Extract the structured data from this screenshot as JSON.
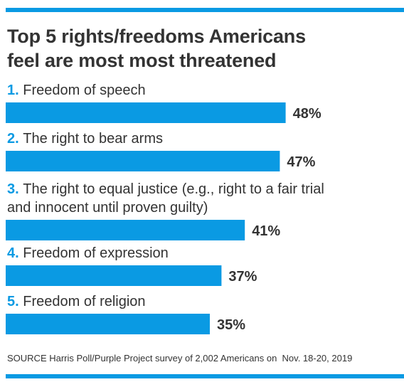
{
  "title_lines": [
    "Top 5 rights/freedoms Americans",
    "feel are most most threatened"
  ],
  "source": "SOURCE Harris Poll/Purple Project survey of 2,002 Americans on  Nov. 18-20, 2019",
  "colors": {
    "accent": "#0a9ae3",
    "text": "#333333"
  },
  "chart_data": {
    "type": "bar",
    "orientation": "horizontal",
    "title": "Top 5 rights/freedoms Americans feel are most most threatened",
    "value_suffix": "%",
    "items": [
      {
        "rank": "1.",
        "label_lines": [
          "Freedom of speech"
        ],
        "value": 48
      },
      {
        "rank": "2.",
        "label_lines": [
          "The right to bear arms"
        ],
        "value": 47
      },
      {
        "rank": "3.",
        "label_lines": [
          "The right to equal justice (e.g., right to a fair trial",
          "and innocent until proven guilty)"
        ],
        "value": 41
      },
      {
        "rank": "4.",
        "label_lines": [
          "Freedom of expression"
        ],
        "value": 37
      },
      {
        "rank": "5.",
        "label_lines": [
          "Freedom of religion"
        ],
        "value": 35
      }
    ]
  }
}
